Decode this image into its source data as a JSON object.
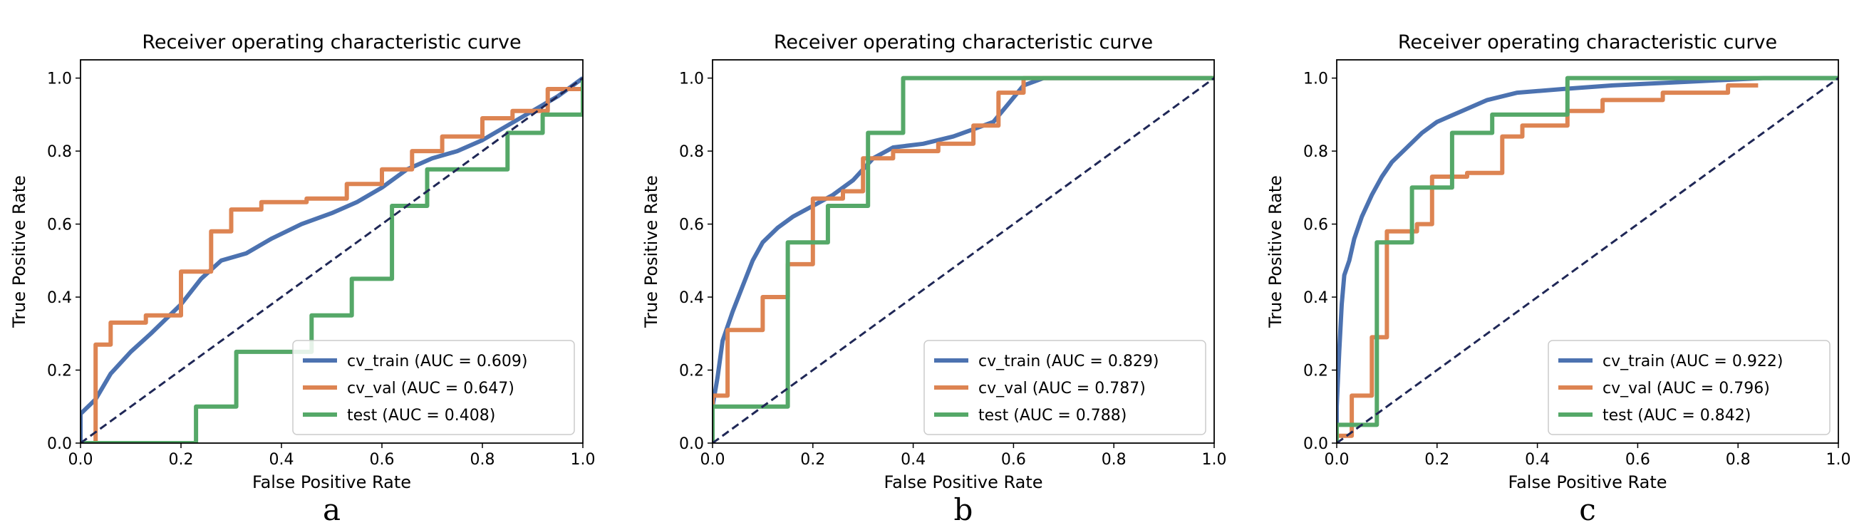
{
  "chart_data": [
    {
      "type": "line",
      "panel_label": "a",
      "title": "Receiver operating characteristic curve",
      "xlabel": "False Positive Rate",
      "ylabel": "True Positive Rate",
      "xlim": [
        0,
        1
      ],
      "ylim": [
        0,
        1.05
      ],
      "xticks": [
        "0.0",
        "0.2",
        "0.4",
        "0.6",
        "0.8",
        "1.0"
      ],
      "yticks": [
        "0.0",
        "0.2",
        "0.4",
        "0.6",
        "0.8",
        "1.0"
      ],
      "legend_position": "lower-right",
      "diagonal": true,
      "series": [
        {
          "name": "cv_train",
          "label": "cv_train (AUC = 0.609)",
          "color": "#4c72b0",
          "points": [
            [
              0,
              0
            ],
            [
              0,
              0.08
            ],
            [
              0.03,
              0.12
            ],
            [
              0.06,
              0.19
            ],
            [
              0.1,
              0.25
            ],
            [
              0.14,
              0.3
            ],
            [
              0.2,
              0.38
            ],
            [
              0.24,
              0.45
            ],
            [
              0.28,
              0.5
            ],
            [
              0.33,
              0.52
            ],
            [
              0.38,
              0.56
            ],
            [
              0.44,
              0.6
            ],
            [
              0.5,
              0.63
            ],
            [
              0.55,
              0.66
            ],
            [
              0.6,
              0.7
            ],
            [
              0.65,
              0.75
            ],
            [
              0.7,
              0.78
            ],
            [
              0.75,
              0.8
            ],
            [
              0.8,
              0.83
            ],
            [
              0.85,
              0.87
            ],
            [
              0.9,
              0.91
            ],
            [
              0.95,
              0.95
            ],
            [
              0.98,
              0.98
            ],
            [
              1,
              1
            ]
          ]
        },
        {
          "name": "cv_val",
          "label": "cv_val (AUC = 0.647)",
          "color": "#dd8452",
          "points": [
            [
              0,
              0
            ],
            [
              0.03,
              0
            ],
            [
              0.03,
              0.27
            ],
            [
              0.06,
              0.27
            ],
            [
              0.06,
              0.33
            ],
            [
              0.13,
              0.33
            ],
            [
              0.13,
              0.35
            ],
            [
              0.2,
              0.35
            ],
            [
              0.2,
              0.47
            ],
            [
              0.26,
              0.47
            ],
            [
              0.26,
              0.58
            ],
            [
              0.3,
              0.58
            ],
            [
              0.3,
              0.64
            ],
            [
              0.36,
              0.64
            ],
            [
              0.36,
              0.66
            ],
            [
              0.45,
              0.66
            ],
            [
              0.45,
              0.67
            ],
            [
              0.53,
              0.67
            ],
            [
              0.53,
              0.71
            ],
            [
              0.6,
              0.71
            ],
            [
              0.6,
              0.75
            ],
            [
              0.66,
              0.75
            ],
            [
              0.66,
              0.8
            ],
            [
              0.72,
              0.8
            ],
            [
              0.72,
              0.84
            ],
            [
              0.8,
              0.84
            ],
            [
              0.8,
              0.89
            ],
            [
              0.86,
              0.89
            ],
            [
              0.86,
              0.91
            ],
            [
              0.93,
              0.91
            ],
            [
              0.93,
              0.97
            ],
            [
              1,
              0.97
            ],
            [
              1,
              1
            ]
          ]
        },
        {
          "name": "test",
          "label": "test (AUC = 0.408)",
          "color": "#55a868",
          "points": [
            [
              0,
              0
            ],
            [
              0.23,
              0
            ],
            [
              0.23,
              0.1
            ],
            [
              0.31,
              0.1
            ],
            [
              0.31,
              0.25
            ],
            [
              0.46,
              0.25
            ],
            [
              0.46,
              0.35
            ],
            [
              0.54,
              0.35
            ],
            [
              0.54,
              0.45
            ],
            [
              0.62,
              0.45
            ],
            [
              0.62,
              0.65
            ],
            [
              0.69,
              0.65
            ],
            [
              0.69,
              0.75
            ],
            [
              0.85,
              0.75
            ],
            [
              0.85,
              0.85
            ],
            [
              0.92,
              0.85
            ],
            [
              0.92,
              0.9
            ],
            [
              1,
              0.9
            ],
            [
              1,
              1
            ]
          ]
        }
      ]
    },
    {
      "type": "line",
      "panel_label": "b",
      "title": "Receiver operating characteristic curve",
      "xlabel": "False Positive Rate",
      "ylabel": "True Positive Rate",
      "xlim": [
        0,
        1
      ],
      "ylim": [
        0,
        1.05
      ],
      "xticks": [
        "0.0",
        "0.2",
        "0.4",
        "0.6",
        "0.8",
        "1.0"
      ],
      "yticks": [
        "0.0",
        "0.2",
        "0.4",
        "0.6",
        "0.8",
        "1.0"
      ],
      "legend_position": "lower-right",
      "diagonal": true,
      "series": [
        {
          "name": "cv_train",
          "label": "cv_train (AUC = 0.829)",
          "color": "#4c72b0",
          "points": [
            [
              0,
              0
            ],
            [
              0,
              0.1
            ],
            [
              0.01,
              0.18
            ],
            [
              0.02,
              0.28
            ],
            [
              0.04,
              0.36
            ],
            [
              0.06,
              0.43
            ],
            [
              0.08,
              0.5
            ],
            [
              0.1,
              0.55
            ],
            [
              0.13,
              0.59
            ],
            [
              0.16,
              0.62
            ],
            [
              0.2,
              0.65
            ],
            [
              0.24,
              0.68
            ],
            [
              0.28,
              0.72
            ],
            [
              0.32,
              0.78
            ],
            [
              0.36,
              0.81
            ],
            [
              0.42,
              0.82
            ],
            [
              0.48,
              0.84
            ],
            [
              0.52,
              0.86
            ],
            [
              0.56,
              0.88
            ],
            [
              0.59,
              0.93
            ],
            [
              0.62,
              0.98
            ],
            [
              0.66,
              1
            ],
            [
              0.7,
              1
            ],
            [
              1,
              1
            ]
          ]
        },
        {
          "name": "cv_val",
          "label": "cv_val (AUC = 0.787)",
          "color": "#dd8452",
          "points": [
            [
              0,
              0
            ],
            [
              0,
              0.13
            ],
            [
              0.03,
              0.13
            ],
            [
              0.03,
              0.31
            ],
            [
              0.1,
              0.31
            ],
            [
              0.1,
              0.4
            ],
            [
              0.15,
              0.4
            ],
            [
              0.15,
              0.49
            ],
            [
              0.2,
              0.49
            ],
            [
              0.2,
              0.67
            ],
            [
              0.26,
              0.67
            ],
            [
              0.26,
              0.69
            ],
            [
              0.3,
              0.69
            ],
            [
              0.3,
              0.78
            ],
            [
              0.36,
              0.78
            ],
            [
              0.36,
              0.8
            ],
            [
              0.45,
              0.8
            ],
            [
              0.45,
              0.82
            ],
            [
              0.52,
              0.82
            ],
            [
              0.52,
              0.87
            ],
            [
              0.57,
              0.87
            ],
            [
              0.57,
              0.96
            ],
            [
              0.62,
              0.96
            ],
            [
              0.62,
              1
            ],
            [
              1,
              1
            ]
          ]
        },
        {
          "name": "test",
          "label": "test (AUC = 0.788)",
          "color": "#55a868",
          "points": [
            [
              0,
              0
            ],
            [
              0,
              0.1
            ],
            [
              0.15,
              0.1
            ],
            [
              0.15,
              0.55
            ],
            [
              0.23,
              0.55
            ],
            [
              0.23,
              0.65
            ],
            [
              0.31,
              0.65
            ],
            [
              0.31,
              0.85
            ],
            [
              0.38,
              0.85
            ],
            [
              0.38,
              1
            ],
            [
              1,
              1
            ]
          ]
        }
      ]
    },
    {
      "type": "line",
      "panel_label": "c",
      "title": "Receiver operating characteristic curve",
      "xlabel": "False Positive Rate",
      "ylabel": "True Positive Rate",
      "xlim": [
        0,
        1
      ],
      "ylim": [
        0,
        1.05
      ],
      "xticks": [
        "0.0",
        "0.2",
        "0.4",
        "0.6",
        "0.8",
        "1.0"
      ],
      "yticks": [
        "0.0",
        "0.2",
        "0.4",
        "0.6",
        "0.8",
        "1.0"
      ],
      "legend_position": "lower-right",
      "diagonal": true,
      "series": [
        {
          "name": "cv_train",
          "label": "cv_train (AUC = 0.922)",
          "color": "#4c72b0",
          "points": [
            [
              0,
              0
            ],
            [
              0,
              0.1
            ],
            [
              0.005,
              0.25
            ],
            [
              0.01,
              0.38
            ],
            [
              0.015,
              0.46
            ],
            [
              0.025,
              0.5
            ],
            [
              0.035,
              0.56
            ],
            [
              0.05,
              0.62
            ],
            [
              0.07,
              0.68
            ],
            [
              0.09,
              0.73
            ],
            [
              0.11,
              0.77
            ],
            [
              0.14,
              0.81
            ],
            [
              0.17,
              0.85
            ],
            [
              0.2,
              0.88
            ],
            [
              0.25,
              0.91
            ],
            [
              0.3,
              0.94
            ],
            [
              0.36,
              0.96
            ],
            [
              0.45,
              0.97
            ],
            [
              0.55,
              0.98
            ],
            [
              0.7,
              0.99
            ],
            [
              0.85,
              1
            ],
            [
              1,
              1
            ]
          ]
        },
        {
          "name": "cv_val",
          "label": "cv_val (AUC = 0.796)",
          "color": "#dd8452",
          "points": [
            [
              0,
              0
            ],
            [
              0,
              0.02
            ],
            [
              0.03,
              0.02
            ],
            [
              0.03,
              0.13
            ],
            [
              0.07,
              0.13
            ],
            [
              0.07,
              0.29
            ],
            [
              0.1,
              0.29
            ],
            [
              0.1,
              0.58
            ],
            [
              0.16,
              0.58
            ],
            [
              0.16,
              0.6
            ],
            [
              0.19,
              0.6
            ],
            [
              0.19,
              0.73
            ],
            [
              0.26,
              0.73
            ],
            [
              0.26,
              0.74
            ],
            [
              0.33,
              0.74
            ],
            [
              0.33,
              0.84
            ],
            [
              0.37,
              0.84
            ],
            [
              0.37,
              0.87
            ],
            [
              0.46,
              0.87
            ],
            [
              0.46,
              0.91
            ],
            [
              0.53,
              0.91
            ],
            [
              0.53,
              0.94
            ],
            [
              0.65,
              0.94
            ],
            [
              0.65,
              0.96
            ],
            [
              0.78,
              0.96
            ],
            [
              0.78,
              0.98
            ],
            [
              0.84,
              0.98
            ]
          ]
        },
        {
          "name": "test",
          "label": "test (AUC = 0.842)",
          "color": "#55a868",
          "points": [
            [
              0,
              0
            ],
            [
              0,
              0.05
            ],
            [
              0.08,
              0.05
            ],
            [
              0.08,
              0.55
            ],
            [
              0.15,
              0.55
            ],
            [
              0.15,
              0.7
            ],
            [
              0.23,
              0.7
            ],
            [
              0.23,
              0.85
            ],
            [
              0.31,
              0.85
            ],
            [
              0.31,
              0.9
            ],
            [
              0.46,
              0.9
            ],
            [
              0.46,
              1
            ],
            [
              1,
              1
            ]
          ]
        }
      ]
    }
  ]
}
